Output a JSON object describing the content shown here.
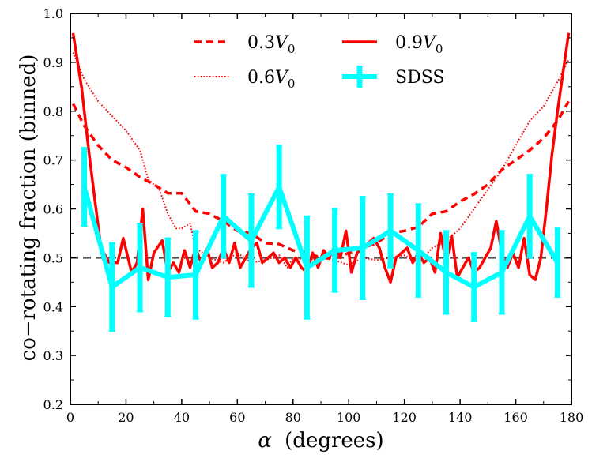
{
  "chart_data": {
    "type": "line",
    "title": "",
    "xlabel_symbol": "α",
    "xlabel_unit": "(degrees)",
    "ylabel": "co−rotating fraction (binned)",
    "xlim": [
      0,
      180
    ],
    "ylim": [
      0.2,
      1.0
    ],
    "xticks": [
      0,
      20,
      40,
      60,
      80,
      100,
      120,
      140,
      160,
      180
    ],
    "yticks": [
      0.2,
      0.3,
      0.4,
      0.5,
      0.6,
      0.7,
      0.8,
      0.9,
      1.0
    ],
    "xtick_labels": [
      "0",
      "20",
      "40",
      "60",
      "80",
      "100",
      "120",
      "140",
      "160",
      "180"
    ],
    "ytick_labels": [
      "0.2",
      "0.3",
      "0.4",
      "0.5",
      "0.6",
      "0.7",
      "0.8",
      "0.9",
      "1.0"
    ],
    "reference_line": {
      "y": 0.5,
      "color": "#555555",
      "style": "dashed"
    },
    "legend": {
      "placement": "top-center",
      "entries": [
        {
          "key": "v03",
          "prefix": "0.3",
          "symbol": "V",
          "subscript": "0"
        },
        {
          "key": "v06",
          "prefix": "0.6",
          "symbol": "V",
          "subscript": "0"
        },
        {
          "key": "v09",
          "prefix": "0.9",
          "symbol": "V",
          "subscript": "0"
        },
        {
          "key": "sdss",
          "label": "SDSS"
        }
      ]
    },
    "series": [
      {
        "name": "0.3V0",
        "key": "v03",
        "color": "#ff0000",
        "style": "dashed",
        "x": [
          1,
          5,
          10,
          15,
          20,
          25,
          30,
          35,
          40,
          45,
          50,
          55,
          60,
          65,
          70,
          75,
          80,
          85,
          90,
          95,
          100,
          105,
          110,
          115,
          120,
          125,
          130,
          135,
          140,
          145,
          150,
          155,
          160,
          165,
          170,
          175,
          179
        ],
        "y": [
          0.815,
          0.77,
          0.73,
          0.7,
          0.685,
          0.665,
          0.65,
          0.632,
          0.632,
          0.595,
          0.59,
          0.575,
          0.555,
          0.55,
          0.53,
          0.528,
          0.515,
          0.51,
          0.5,
          0.498,
          0.51,
          0.52,
          0.53,
          0.55,
          0.555,
          0.563,
          0.59,
          0.595,
          0.615,
          0.63,
          0.65,
          0.68,
          0.7,
          0.72,
          0.745,
          0.78,
          0.82
        ]
      },
      {
        "name": "0.6V0",
        "key": "v06",
        "color": "#ff0000",
        "style": "dotted",
        "x": [
          1,
          5,
          10,
          15,
          20,
          25,
          28,
          32,
          35,
          38,
          40,
          43,
          45,
          50,
          55,
          60,
          65,
          70,
          75,
          78,
          80,
          85,
          90,
          95,
          100,
          105,
          110,
          115,
          120,
          125,
          130,
          135,
          140,
          145,
          150,
          155,
          160,
          165,
          170,
          175,
          179
        ],
        "y": [
          0.92,
          0.865,
          0.82,
          0.79,
          0.76,
          0.72,
          0.66,
          0.64,
          0.59,
          0.56,
          0.56,
          0.57,
          0.52,
          0.5,
          0.49,
          0.51,
          0.49,
          0.495,
          0.505,
          0.48,
          0.5,
          0.495,
          0.5,
          0.495,
          0.485,
          0.5,
          0.495,
          0.5,
          0.505,
          0.49,
          0.52,
          0.535,
          0.56,
          0.6,
          0.64,
          0.68,
          0.73,
          0.78,
          0.81,
          0.86,
          0.905
        ]
      },
      {
        "name": "0.9V0",
        "key": "v09",
        "color": "#ff0000",
        "style": "solid",
        "x": [
          1,
          4,
          7,
          11,
          14,
          17,
          19,
          22,
          24,
          26,
          28,
          30,
          33,
          35,
          37,
          39,
          41,
          43,
          45,
          47,
          49,
          51,
          53,
          55,
          57,
          59,
          61,
          63,
          65,
          67,
          69,
          71,
          73,
          75,
          77,
          79,
          81,
          83,
          85,
          87,
          89,
          91,
          93,
          95,
          97,
          99,
          101,
          103,
          105,
          107,
          109,
          111,
          113,
          115,
          117,
          119,
          121,
          123,
          125,
          127,
          129,
          131,
          133,
          135,
          137,
          139,
          141,
          143,
          145,
          147,
          149,
          151,
          153,
          155,
          157,
          159,
          161,
          163,
          165,
          167,
          169,
          171,
          173,
          175,
          179
        ],
        "y": [
          0.96,
          0.85,
          0.7,
          0.52,
          0.49,
          0.49,
          0.54,
          0.47,
          0.49,
          0.6,
          0.455,
          0.51,
          0.535,
          0.47,
          0.49,
          0.47,
          0.515,
          0.48,
          0.52,
          0.49,
          0.52,
          0.48,
          0.49,
          0.52,
          0.49,
          0.53,
          0.48,
          0.5,
          0.52,
          0.53,
          0.49,
          0.5,
          0.51,
          0.49,
          0.5,
          0.48,
          0.5,
          0.48,
          0.47,
          0.51,
          0.48,
          0.515,
          0.5,
          0.525,
          0.5,
          0.555,
          0.47,
          0.51,
          0.52,
          0.53,
          0.54,
          0.52,
          0.48,
          0.45,
          0.5,
          0.51,
          0.52,
          0.49,
          0.51,
          0.49,
          0.5,
          0.47,
          0.55,
          0.49,
          0.545,
          0.46,
          0.48,
          0.5,
          0.47,
          0.48,
          0.5,
          0.52,
          0.575,
          0.51,
          0.48,
          0.51,
          0.48,
          0.54,
          0.465,
          0.455,
          0.5,
          0.6,
          0.71,
          0.8,
          0.96
        ]
      }
    ],
    "errorbar_series": {
      "name": "SDSS",
      "key": "sdss",
      "color": "#00ffff",
      "x": [
        5,
        15,
        25,
        35,
        45,
        55,
        65,
        75,
        85,
        95,
        105,
        115,
        125,
        135,
        145,
        155,
        165,
        175
      ],
      "y": [
        0.645,
        0.44,
        0.48,
        0.46,
        0.465,
        0.585,
        0.535,
        0.645,
        0.48,
        0.515,
        0.52,
        0.555,
        0.515,
        0.47,
        0.44,
        0.47,
        0.585,
        0.49
      ],
      "err": [
        0.08,
        0.09,
        0.09,
        0.08,
        0.09,
        0.085,
        0.095,
        0.085,
        0.105,
        0.085,
        0.105,
        0.075,
        0.095,
        0.085,
        0.07,
        0.085,
        0.085,
        0.07
      ]
    }
  }
}
